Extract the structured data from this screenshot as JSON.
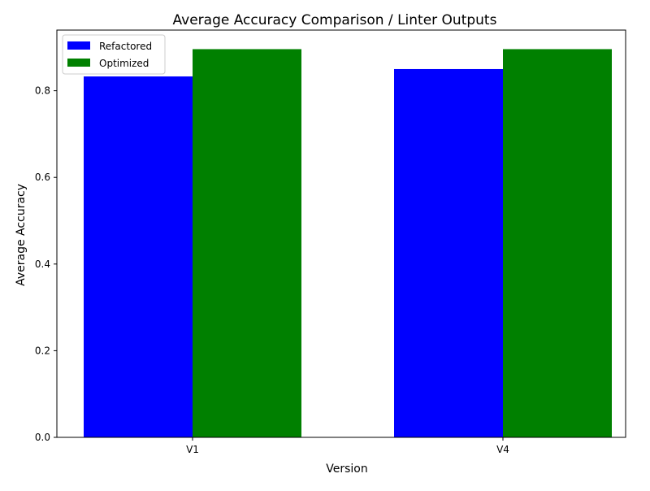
{
  "chart_data": {
    "type": "bar",
    "title": "Average Accuracy Comparison / Linter Outputs",
    "xlabel": "Version",
    "ylabel": "Average Accuracy",
    "categories": [
      "V1",
      "V4"
    ],
    "series": [
      {
        "name": "Refactored",
        "color": "#0000ff",
        "values": [
          0.833,
          0.85
        ]
      },
      {
        "name": "Optimized",
        "color": "#008000",
        "values": [
          0.896,
          0.896
        ]
      }
    ],
    "ylim": [
      0,
      0.94
    ],
    "yticks": [
      0.0,
      0.2,
      0.4,
      0.6,
      0.8
    ],
    "ytick_labels": [
      "0.0",
      "0.2",
      "0.4",
      "0.6",
      "0.8"
    ],
    "grid": false,
    "legend_position": "top-left"
  }
}
